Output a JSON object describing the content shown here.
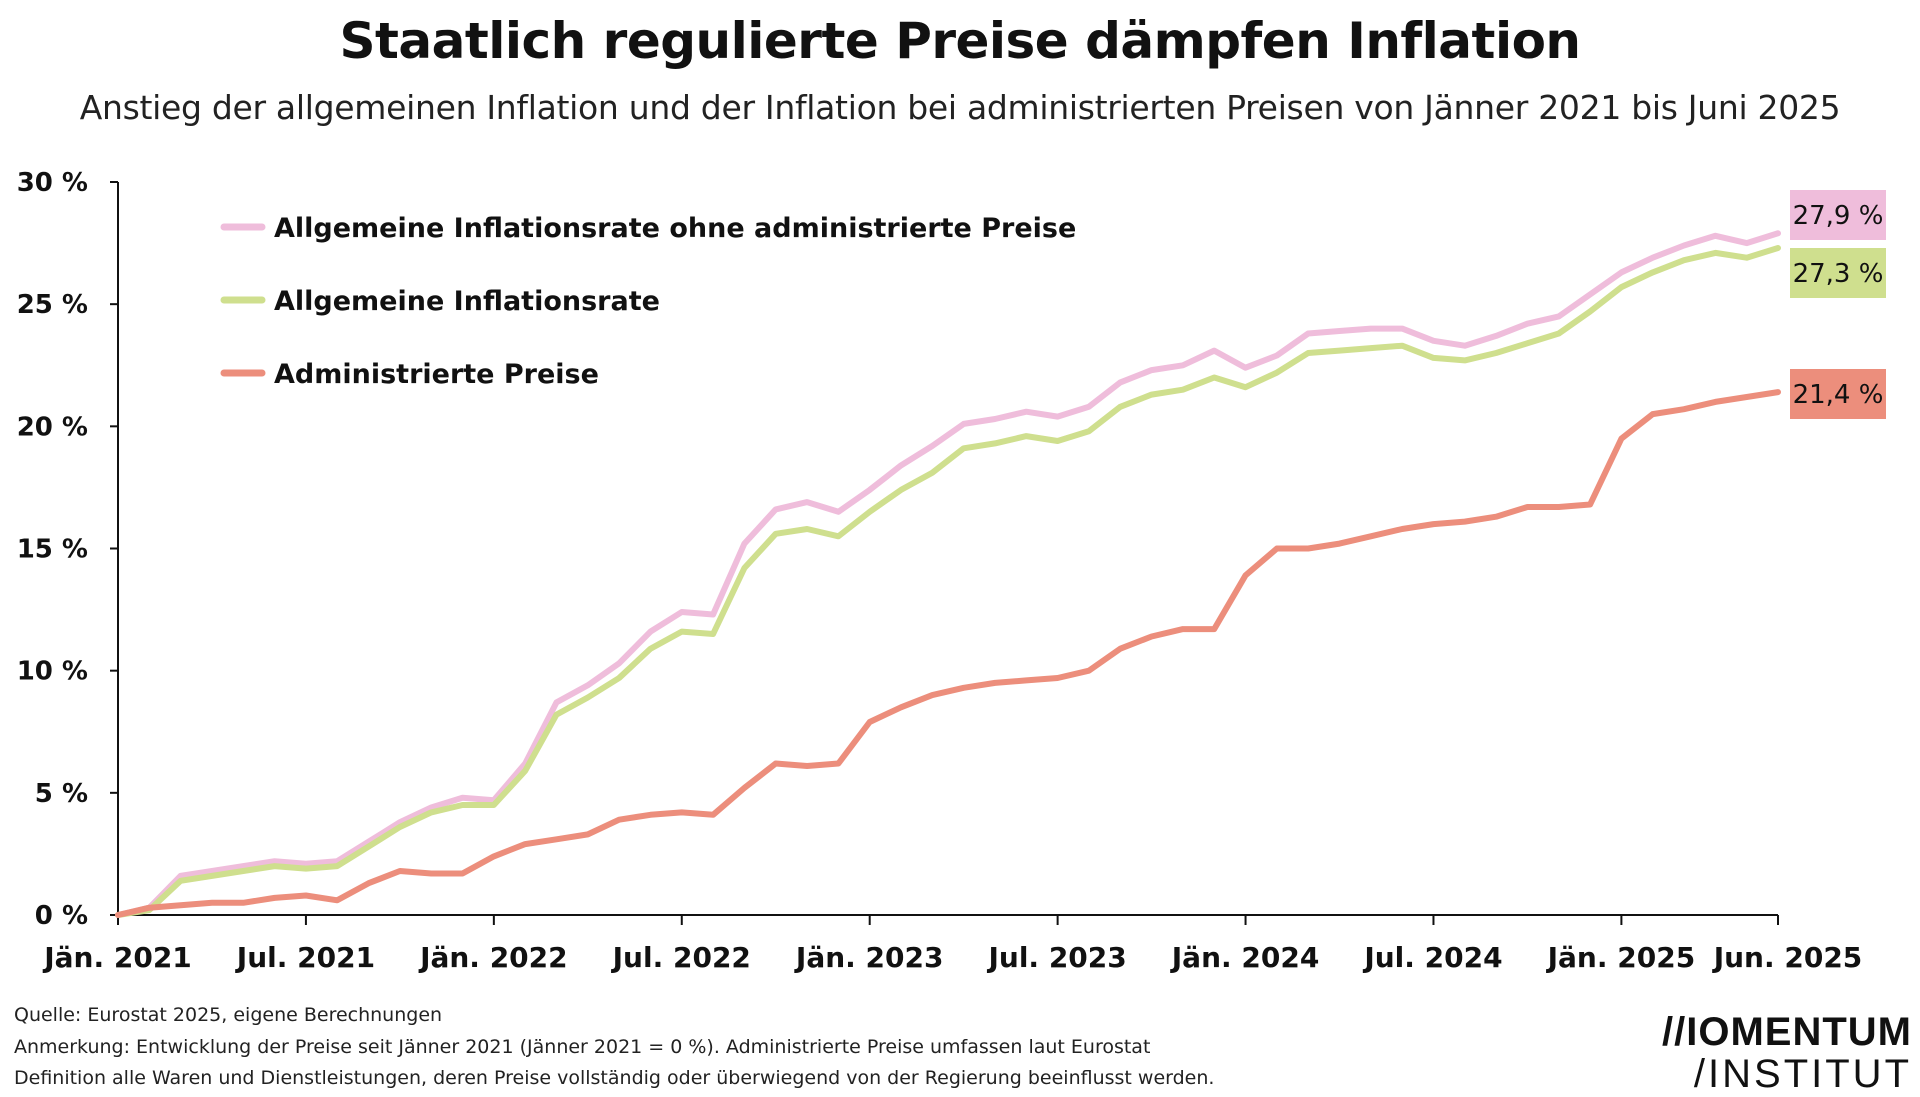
{
  "chart_data": {
    "type": "line",
    "title": "Staatlich regulierte Preise dämpfen Inflation",
    "subtitle": "Anstieg der allgemeinen Inflation und der Inflation bei administrierten Preisen von Jänner 2021 bis Juni 2025",
    "xlabel": "",
    "ylabel": "",
    "ylim": [
      0,
      30
    ],
    "y_ticks": [
      "0 %",
      "5 %",
      "10 %",
      "15 %",
      "20 %",
      "25 %",
      "30 %"
    ],
    "y_tick_values": [
      0,
      5,
      10,
      15,
      20,
      25,
      30
    ],
    "x_tick_labels": [
      "Jän. 2021",
      "Jul. 2021",
      "Jän. 2022",
      "Jul. 2022",
      "Jän. 2023",
      "Jul. 2023",
      "Jän. 2024",
      "Jul. 2024",
      "Jän. 2025",
      "Jun. 2025"
    ],
    "x_tick_months": [
      0,
      6,
      12,
      18,
      24,
      30,
      36,
      42,
      48,
      53
    ],
    "x_start": "2021-01",
    "x_end": "2025-06",
    "grid": false,
    "legend_position": "top-left",
    "series": [
      {
        "name": "Allgemeine Inflationsrate ohne administrierte Preise",
        "color": "#efbddb",
        "end_label": "27,9 %",
        "values": [
          0,
          0.3,
          1.6,
          1.8,
          2.0,
          2.2,
          2.1,
          2.2,
          3.0,
          3.8,
          4.4,
          4.8,
          4.7,
          6.2,
          8.7,
          9.4,
          10.3,
          11.6,
          12.4,
          12.3,
          15.2,
          16.6,
          16.9,
          16.5,
          17.4,
          18.4,
          19.2,
          20.1,
          20.3,
          20.6,
          20.4,
          20.8,
          21.8,
          22.3,
          22.5,
          23.1,
          22.4,
          22.9,
          23.8,
          23.9,
          24.0,
          24.0,
          23.5,
          23.3,
          23.7,
          24.2,
          24.5,
          25.4,
          26.3,
          26.9,
          27.4,
          27.8,
          27.5,
          27.9
        ]
      },
      {
        "name": "Allgemeine Inflationsrate",
        "color": "#cfdf8e",
        "end_label": "27,3 %",
        "values": [
          0,
          0.2,
          1.4,
          1.6,
          1.8,
          2.0,
          1.9,
          2.0,
          2.8,
          3.6,
          4.2,
          4.5,
          4.5,
          5.9,
          8.2,
          8.9,
          9.7,
          10.9,
          11.6,
          11.5,
          14.2,
          15.6,
          15.8,
          15.5,
          16.5,
          17.4,
          18.1,
          19.1,
          19.3,
          19.6,
          19.4,
          19.8,
          20.8,
          21.3,
          21.5,
          22.0,
          21.6,
          22.2,
          23.0,
          23.1,
          23.2,
          23.3,
          22.8,
          22.7,
          23.0,
          23.4,
          23.8,
          24.7,
          25.7,
          26.3,
          26.8,
          27.1,
          26.9,
          27.3
        ]
      },
      {
        "name": "Administrierte Preise",
        "color": "#ec8e7c",
        "end_label": "21,4 %",
        "values": [
          0,
          0.3,
          0.4,
          0.5,
          0.5,
          0.7,
          0.8,
          0.6,
          1.3,
          1.8,
          1.7,
          1.7,
          2.4,
          2.9,
          3.1,
          3.3,
          3.9,
          4.1,
          4.2,
          4.1,
          5.2,
          6.2,
          6.1,
          6.2,
          7.9,
          8.5,
          9.0,
          9.3,
          9.5,
          9.6,
          9.7,
          10.0,
          10.9,
          11.4,
          11.7,
          11.7,
          13.9,
          15.0,
          15.0,
          15.2,
          15.5,
          15.8,
          16.0,
          16.1,
          16.3,
          16.7,
          16.7,
          16.8,
          19.5,
          20.5,
          20.7,
          21.0,
          21.2,
          21.4
        ]
      }
    ]
  },
  "footer": {
    "source": "Quelle: Eurostat 2025, eigene Berechnungen",
    "note_line1": "Anmerkung:  Entwicklung der Preise seit Jänner 2021 (Jänner 2021 = 0 %). Administrierte  Preise umfassen laut Eurostat",
    "note_line2": "Definition alle Waren und Dienstleistungen, deren Preise vollständig oder überwiegend von der Regierung  beeinflusst werden."
  },
  "logo": {
    "line1": "//IOMENTUM",
    "line2": "/INSTITUT"
  }
}
